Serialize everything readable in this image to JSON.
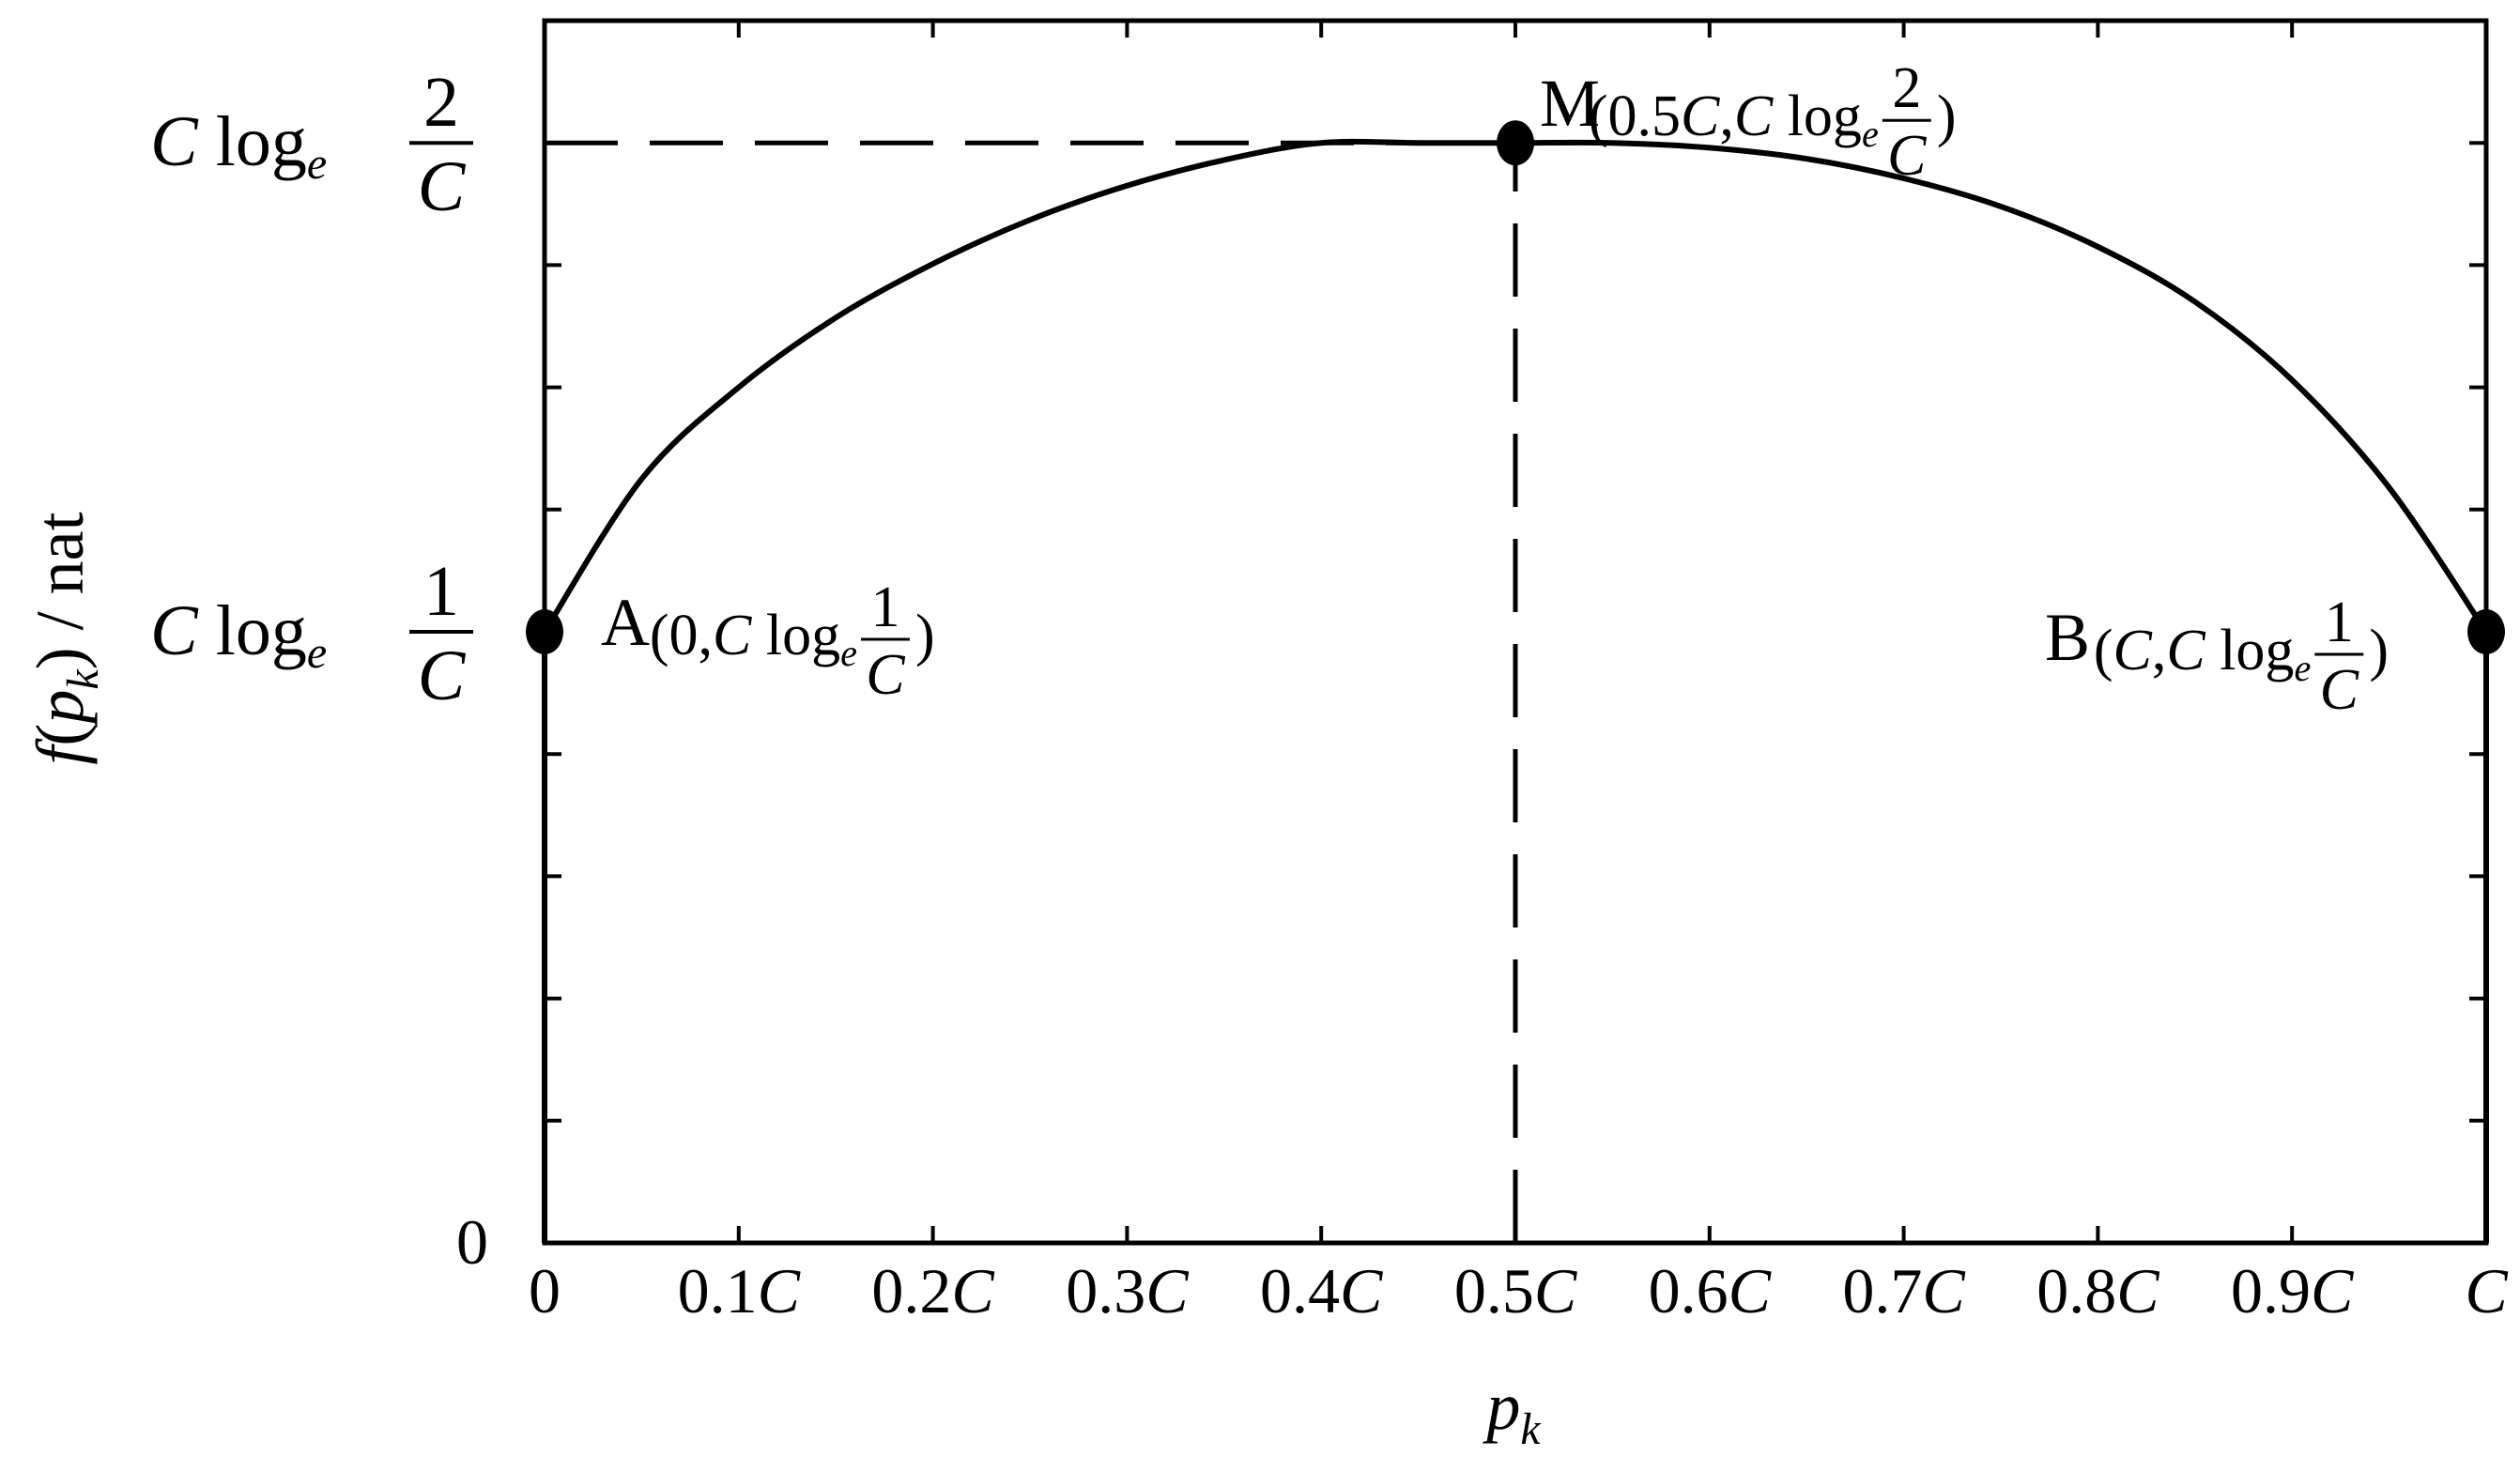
{
  "chart_data": {
    "type": "line",
    "xlabel": {
      "base": "p",
      "sub": "k"
    },
    "ylabel": {
      "f": "f",
      "open": "(",
      "base": "p",
      "sub": "k",
      "close": ")",
      "unit": " / nat"
    },
    "xlim": [
      0,
      1
    ],
    "ylim": [
      0,
      1
    ],
    "x_ticks": [
      {
        "x": 0.0,
        "num": "0",
        "c": ""
      },
      {
        "x": 0.1,
        "num": "0.1",
        "c": "C"
      },
      {
        "x": 0.2,
        "num": "0.2",
        "c": "C"
      },
      {
        "x": 0.3,
        "num": "0.3",
        "c": "C"
      },
      {
        "x": 0.4,
        "num": "0.4",
        "c": "C"
      },
      {
        "x": 0.5,
        "num": "0.5",
        "c": "C"
      },
      {
        "x": 0.6,
        "num": "0.6",
        "c": "C"
      },
      {
        "x": 0.7,
        "num": "0.7",
        "c": "C"
      },
      {
        "x": 0.8,
        "num": "0.8",
        "c": "C"
      },
      {
        "x": 0.9,
        "num": "0.9",
        "c": "C"
      },
      {
        "x": 1.0,
        "num": "",
        "c": "C"
      }
    ],
    "y_ticks": [
      {
        "y": 0,
        "label": "0"
      },
      {
        "y": 0.5,
        "label": "C log_e (1/C)"
      },
      {
        "y": 0.9,
        "label": "C log_e (2/C)"
      }
    ],
    "points": [
      {
        "name": "A",
        "x": 0.0,
        "y": 0.5,
        "head": "(0,",
        "tail": ")"
      },
      {
        "name": "M",
        "x": 0.5,
        "y": 0.9,
        "head": "(0.5",
        "tail": ")"
      },
      {
        "name": "B",
        "x": 1.0,
        "y": 0.5,
        "head": "(",
        "tail": ")"
      }
    ],
    "ytick_label": {
      "c": "C",
      "log": "log",
      "e": "e",
      "n1": "1",
      "n2": "2",
      "den": "C"
    },
    "guides": [
      {
        "type": "horizontal-dashed",
        "y": 0.9,
        "x_from": 0,
        "x_to": 0.5
      },
      {
        "type": "vertical-dashed",
        "x": 0.5,
        "y_from": 0,
        "y_to": 0.9
      }
    ],
    "curve": {
      "description": "arc from A through M to B",
      "x": [
        0,
        0.05,
        0.1,
        0.15,
        0.2,
        0.25,
        0.3,
        0.35,
        0.4,
        0.45,
        0.5,
        0.55,
        0.6,
        0.65,
        0.7,
        0.75,
        0.8,
        0.85,
        0.9,
        0.95,
        1.0
      ],
      "y": [
        0.5,
        0.625,
        0.7,
        0.757,
        0.801,
        0.837,
        0.865,
        0.886,
        0.9,
        0.9,
        0.9,
        0.9,
        0.896,
        0.887,
        0.871,
        0.848,
        0.815,
        0.77,
        0.706,
        0.618,
        0.5
      ]
    },
    "grid": false,
    "frame": "box"
  }
}
